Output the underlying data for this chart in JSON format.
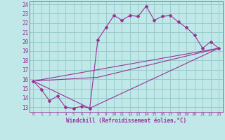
{
  "xlabel": "Windchill (Refroidissement éolien,°C)",
  "bg_color": "#c0e8e8",
  "line_color": "#993399",
  "grid_color": "#99cccc",
  "xlim": [
    -0.5,
    23.5
  ],
  "ylim": [
    12.5,
    24.3
  ],
  "xticks": [
    0,
    1,
    2,
    3,
    4,
    5,
    6,
    7,
    8,
    9,
    10,
    11,
    12,
    13,
    14,
    15,
    16,
    17,
    18,
    19,
    20,
    21,
    22,
    23
  ],
  "yticks": [
    13,
    14,
    15,
    16,
    17,
    18,
    19,
    20,
    21,
    22,
    23,
    24
  ],
  "series": [
    [
      0,
      15.8
    ],
    [
      1,
      14.9
    ],
    [
      2,
      13.7
    ],
    [
      3,
      14.2
    ],
    [
      4,
      13.0
    ],
    [
      5,
      12.9
    ],
    [
      6,
      13.1
    ],
    [
      7,
      12.9
    ],
    [
      8,
      20.2
    ],
    [
      9,
      21.5
    ],
    [
      10,
      22.8
    ],
    [
      11,
      22.3
    ],
    [
      12,
      22.8
    ],
    [
      13,
      22.7
    ],
    [
      14,
      23.8
    ],
    [
      15,
      22.3
    ],
    [
      16,
      22.7
    ],
    [
      17,
      22.8
    ],
    [
      18,
      22.1
    ],
    [
      19,
      21.5
    ],
    [
      20,
      20.7
    ],
    [
      21,
      19.3
    ],
    [
      22,
      20.0
    ],
    [
      23,
      19.3
    ]
  ],
  "line2": [
    [
      0,
      15.8
    ],
    [
      7,
      12.9
    ],
    [
      23,
      19.3
    ]
  ],
  "line3": [
    [
      0,
      15.8
    ],
    [
      23,
      19.3
    ]
  ],
  "line4": [
    [
      0,
      15.8
    ],
    [
      8,
      16.2
    ],
    [
      23,
      19.3
    ]
  ]
}
